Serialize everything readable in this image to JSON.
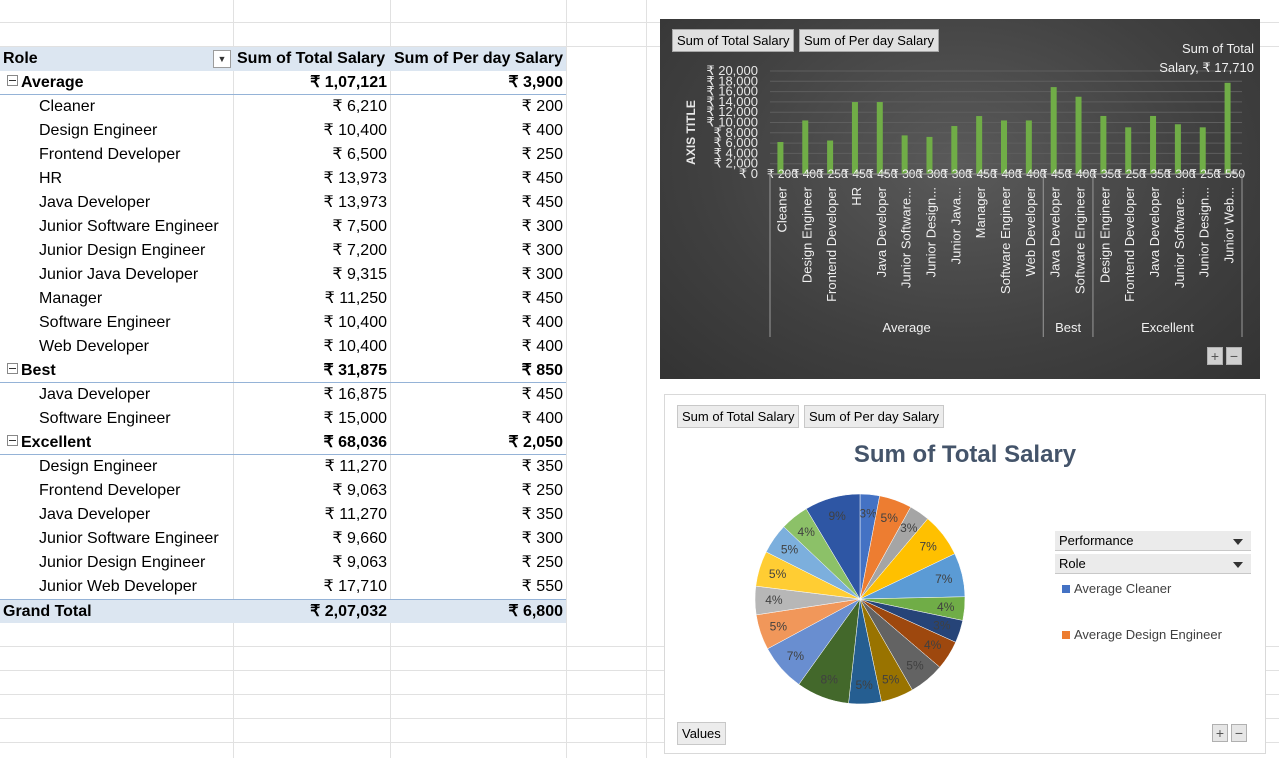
{
  "pivot": {
    "headers": {
      "role": "Role",
      "total": "Sum of Total Salary",
      "perday": "Sum of Per day Salary"
    },
    "groups": [
      {
        "name": "Average",
        "total": "₹ 1,07,121",
        "perday": "₹ 3,900",
        "items": [
          {
            "role": "Cleaner",
            "total": "₹ 6,210",
            "perday": "₹ 200"
          },
          {
            "role": "Design Engineer",
            "total": "₹ 10,400",
            "perday": "₹ 400"
          },
          {
            "role": "Frontend Developer",
            "total": "₹ 6,500",
            "perday": "₹ 250"
          },
          {
            "role": "HR",
            "total": "₹ 13,973",
            "perday": "₹ 450"
          },
          {
            "role": "Java Developer",
            "total": "₹ 13,973",
            "perday": "₹ 450"
          },
          {
            "role": "Junior  Software Engineer",
            "total": "₹ 7,500",
            "perday": "₹ 300"
          },
          {
            "role": "Junior Design Engineer",
            "total": "₹ 7,200",
            "perday": "₹ 300"
          },
          {
            "role": "Junior Java Developer",
            "total": "₹ 9,315",
            "perday": "₹ 300"
          },
          {
            "role": "Manager",
            "total": "₹ 11,250",
            "perday": "₹ 450"
          },
          {
            "role": "Software Engineer",
            "total": "₹ 10,400",
            "perday": "₹ 400"
          },
          {
            "role": "Web Developer",
            "total": "₹ 10,400",
            "perday": "₹ 400"
          }
        ]
      },
      {
        "name": "Best",
        "total": "₹ 31,875",
        "perday": "₹ 850",
        "items": [
          {
            "role": "Java Developer",
            "total": "₹ 16,875",
            "perday": "₹ 450"
          },
          {
            "role": "Software Engineer",
            "total": "₹ 15,000",
            "perday": "₹ 400"
          }
        ]
      },
      {
        "name": "Excellent",
        "total": "₹ 68,036",
        "perday": "₹ 2,050",
        "items": [
          {
            "role": "Design Engineer",
            "total": "₹ 11,270",
            "perday": "₹ 350"
          },
          {
            "role": "Frontend Developer",
            "total": "₹ 9,063",
            "perday": "₹ 250"
          },
          {
            "role": "Java Developer",
            "total": "₹ 11,270",
            "perday": "₹ 350"
          },
          {
            "role": "Junior  Software Engineer",
            "total": "₹ 9,660",
            "perday": "₹ 300"
          },
          {
            "role": "Junior Design Engineer",
            "total": "₹ 9,063",
            "perday": "₹ 250"
          },
          {
            "role": "Junior Web Developer",
            "total": "₹ 17,710",
            "perday": "₹ 550"
          }
        ]
      }
    ],
    "grand_total": {
      "label": "Grand Total",
      "total": "₹ 2,07,032",
      "perday": "₹ 6,800"
    }
  },
  "bar_chart_ui": {
    "field_buttons": [
      "Sum of Total Salary",
      "Sum of Per day Salary"
    ],
    "tooltip_line1": "Sum of Total",
    "tooltip_line2": "Salary, ₹ 17,710",
    "plus": "+",
    "minus": "−"
  },
  "pie_chart_ui": {
    "field_buttons": [
      "Sum of Total Salary",
      "Sum of Per day Salary"
    ],
    "values_button": "Values",
    "dropdowns": [
      "Performance",
      "Role"
    ],
    "legend": [
      {
        "label": "Average Cleaner",
        "color": "#4472c4"
      },
      {
        "label": "Average Design Engineer",
        "color": "#ed7d31"
      }
    ],
    "plus": "+",
    "minus": "−"
  },
  "chart_data": [
    {
      "type": "bar",
      "ylabel": "AXIS TITLE",
      "ylim": [
        0,
        20000
      ],
      "y_ticks": [
        "₹ 20,000",
        "₹ 18,000",
        "₹ 16,000",
        "₹ 14,000",
        "₹ 12,000",
        "₹ 10,000",
        "₹ 8,000",
        "₹ 6,000",
        "₹ 4,000",
        "₹ 2,000",
        "₹ 0"
      ],
      "groups": [
        {
          "name": "Average",
          "categories": [
            "Cleaner",
            "Design Engineer",
            "Frontend Developer",
            "HR",
            "Java Developer",
            "Junior  Software...",
            "Junior Design...",
            "Junior Java...",
            "Manager",
            "Software Engineer",
            "Web Developer"
          ]
        },
        {
          "name": "Best",
          "categories": [
            "Java Developer",
            "Software Engineer"
          ]
        },
        {
          "name": "Excellent",
          "categories": [
            "Design Engineer",
            "Frontend Developer",
            "Java Developer",
            "Junior  Software...",
            "Junior Design...",
            "Junior Web..."
          ]
        }
      ],
      "series": [
        {
          "name": "Sum of Total Salary",
          "color": "#70ad47",
          "values": [
            6210,
            10400,
            6500,
            13973,
            13973,
            7500,
            7200,
            9315,
            11250,
            10400,
            10400,
            16875,
            15000,
            11270,
            9063,
            11270,
            9660,
            9063,
            17710
          ]
        },
        {
          "name": "Sum of Per day Salary",
          "color": "#a5a5a5",
          "values": [
            200,
            400,
            250,
            450,
            450,
            300,
            300,
            300,
            450,
            400,
            400,
            450,
            400,
            350,
            250,
            350,
            300,
            250,
            550
          ],
          "data_labels": [
            "₹ 200",
            "₹ 400",
            "₹ 250",
            "₹ 450",
            "₹ 450",
            "₹ 300",
            "₹ 300",
            "₹ 300",
            "₹ 450",
            "₹ 400",
            "₹ 400",
            "₹ 450",
            "₹ 400",
            "₹ 350",
            "₹ 250",
            "₹ 350",
            "₹ 300",
            "₹ 250",
            "₹ 550"
          ]
        }
      ]
    },
    {
      "type": "pie",
      "title": "Sum of Total Salary",
      "values": [
        6210,
        10400,
        6500,
        13973,
        13973,
        7500,
        7200,
        9315,
        11250,
        10400,
        10400,
        16875,
        15000,
        11270,
        9063,
        11270,
        9660,
        9063,
        17710
      ],
      "labels": [
        "3%",
        "5%",
        "3%",
        "7%",
        "7%",
        "4%",
        "3%",
        "4%",
        "5%",
        "5%",
        "5%",
        "8%",
        "7%",
        "5%",
        "4%",
        "5%",
        "5%",
        "4%",
        "9%"
      ],
      "colors": [
        "#4472c4",
        "#ed7d31",
        "#a5a5a5",
        "#ffc000",
        "#5b9bd5",
        "#70ad47",
        "#264478",
        "#9e480e",
        "#636363",
        "#997300",
        "#255e91",
        "#43682b",
        "#698ed0",
        "#f1975a",
        "#b7b7b7",
        "#ffcd33",
        "#7cafdd",
        "#8cc168",
        "#2e56a4"
      ]
    }
  ]
}
